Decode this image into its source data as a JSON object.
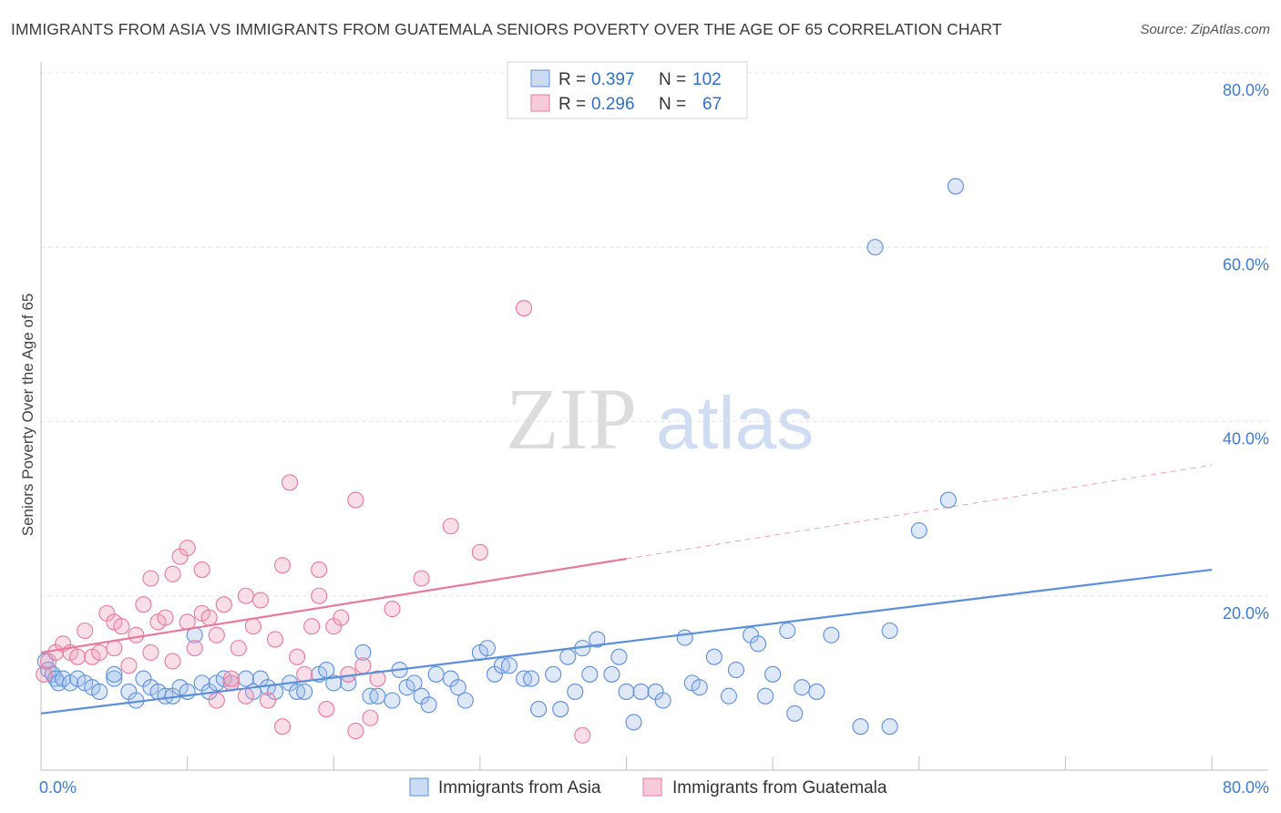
{
  "title": "IMMIGRANTS FROM ASIA VS IMMIGRANTS FROM GUATEMALA SENIORS POVERTY OVER THE AGE OF 65 CORRELATION CHART",
  "source": "Source: ZipAtlas.com",
  "watermark": {
    "zip": "ZIP",
    "atlas": "atlas"
  },
  "chart_data": {
    "type": "scatter",
    "ylabel": "Seniors Poverty Over the Age of 65",
    "xlim": [
      0,
      80
    ],
    "ylim": [
      0,
      80
    ],
    "x_tick_labels": [
      "0.0%",
      "80.0%"
    ],
    "y_ticks": [
      {
        "value": 20,
        "label": "20.0%"
      },
      {
        "value": 40,
        "label": "40.0%"
      },
      {
        "value": 60,
        "label": "60.0%"
      },
      {
        "value": 80,
        "label": "80.0%"
      }
    ],
    "legend_top": [
      {
        "r_label": "R =",
        "r": "0.397",
        "n_label": "N =",
        "n": "102",
        "color": "#5b8fdc"
      },
      {
        "r_label": "R =",
        "r": "0.296",
        "n_label": "N =",
        "n": "67",
        "color": "#e8799c"
      }
    ],
    "series": [
      {
        "name": "Immigrants from Asia",
        "color": "#5b8fdc",
        "fill": "rgba(160,190,235,0.35)",
        "trend": {
          "x0": 0,
          "y0": 6.5,
          "x1": 80,
          "y1": 23,
          "dash_from": null
        },
        "points": [
          [
            0.3,
            12.5
          ],
          [
            0.5,
            11.5
          ],
          [
            0.8,
            11
          ],
          [
            1,
            10.5
          ],
          [
            1.2,
            10
          ],
          [
            1.5,
            10.5
          ],
          [
            2,
            10
          ],
          [
            2.5,
            10.5
          ],
          [
            3,
            10
          ],
          [
            3.5,
            9.5
          ],
          [
            4,
            9
          ],
          [
            5,
            10.5
          ],
          [
            5,
            11
          ],
          [
            6,
            9
          ],
          [
            6.5,
            8
          ],
          [
            7,
            10.5
          ],
          [
            7.5,
            9.5
          ],
          [
            8,
            9
          ],
          [
            8.5,
            8.5
          ],
          [
            9,
            8.5
          ],
          [
            9.5,
            9.5
          ],
          [
            10,
            9
          ],
          [
            10.5,
            15.5
          ],
          [
            11,
            10
          ],
          [
            11.5,
            9
          ],
          [
            12,
            10
          ],
          [
            12.5,
            10.5
          ],
          [
            13,
            10
          ],
          [
            14,
            10.5
          ],
          [
            14.5,
            9
          ],
          [
            15,
            10.5
          ],
          [
            15.5,
            9.5
          ],
          [
            16,
            9
          ],
          [
            17,
            10
          ],
          [
            17.5,
            9
          ],
          [
            18,
            9
          ],
          [
            19,
            11
          ],
          [
            19.5,
            11.5
          ],
          [
            20,
            10
          ],
          [
            21,
            10
          ],
          [
            22,
            13.5
          ],
          [
            22.5,
            8.5
          ],
          [
            23,
            8.5
          ],
          [
            24,
            8
          ],
          [
            24.5,
            11.5
          ],
          [
            25,
            9.5
          ],
          [
            25.5,
            10
          ],
          [
            26,
            8.5
          ],
          [
            26.5,
            7.5
          ],
          [
            27,
            11
          ],
          [
            28,
            10.5
          ],
          [
            28.5,
            9.5
          ],
          [
            29,
            8
          ],
          [
            30,
            13.5
          ],
          [
            30.5,
            14
          ],
          [
            31,
            11
          ],
          [
            31.5,
            12
          ],
          [
            32,
            12
          ],
          [
            33,
            10.5
          ],
          [
            33.5,
            10.5
          ],
          [
            34,
            7
          ],
          [
            35,
            11
          ],
          [
            35.5,
            7
          ],
          [
            36,
            13
          ],
          [
            36.5,
            9
          ],
          [
            37,
            14
          ],
          [
            37.5,
            11
          ],
          [
            38,
            15
          ],
          [
            39,
            11
          ],
          [
            39.5,
            13
          ],
          [
            40,
            9
          ],
          [
            40.5,
            5.5
          ],
          [
            41,
            9
          ],
          [
            42,
            9
          ],
          [
            42.5,
            8
          ],
          [
            44,
            15.2
          ],
          [
            44.5,
            10
          ],
          [
            45,
            9.5
          ],
          [
            46,
            13
          ],
          [
            47,
            8.5
          ],
          [
            47.5,
            11.5
          ],
          [
            48.5,
            15.5
          ],
          [
            49,
            14.5
          ],
          [
            49.5,
            8.5
          ],
          [
            50,
            11
          ],
          [
            51,
            16
          ],
          [
            51.5,
            6.5
          ],
          [
            52,
            9.5
          ],
          [
            53,
            9
          ],
          [
            54,
            15.5
          ],
          [
            56,
            5
          ],
          [
            58,
            5
          ],
          [
            58,
            16
          ],
          [
            60,
            27.5
          ],
          [
            62,
            31
          ],
          [
            57,
            60
          ],
          [
            62.5,
            67
          ]
        ]
      },
      {
        "name": "Immigrants from Guatemala",
        "color": "#e8799c",
        "fill": "rgba(240,160,185,0.35)",
        "trend": {
          "x0": 0,
          "y0": 13.5,
          "x1": 80,
          "y1": 35,
          "dash_from": 40
        },
        "points": [
          [
            0.2,
            11
          ],
          [
            0.5,
            12.5
          ],
          [
            1,
            13.5
          ],
          [
            1.5,
            14.5
          ],
          [
            2,
            13.5
          ],
          [
            2.5,
            13
          ],
          [
            3,
            16
          ],
          [
            3.5,
            13
          ],
          [
            4,
            13.5
          ],
          [
            4.5,
            18
          ],
          [
            5,
            14
          ],
          [
            5,
            17
          ],
          [
            5.5,
            16.5
          ],
          [
            6,
            12
          ],
          [
            6.5,
            15.5
          ],
          [
            7,
            19
          ],
          [
            7.5,
            22
          ],
          [
            7.5,
            13.5
          ],
          [
            8,
            17
          ],
          [
            8.5,
            17.5
          ],
          [
            9,
            22.5
          ],
          [
            9,
            12.5
          ],
          [
            9.5,
            24.5
          ],
          [
            10,
            17
          ],
          [
            10,
            25.5
          ],
          [
            10.5,
            14
          ],
          [
            11,
            18
          ],
          [
            11,
            23
          ],
          [
            11.5,
            17.5
          ],
          [
            12,
            8
          ],
          [
            12,
            15.5
          ],
          [
            12.5,
            19
          ],
          [
            13,
            10
          ],
          [
            13,
            10.5
          ],
          [
            13.5,
            14
          ],
          [
            14,
            20
          ],
          [
            14,
            8.5
          ],
          [
            14.5,
            16.5
          ],
          [
            15,
            19.5
          ],
          [
            15.5,
            8
          ],
          [
            16,
            15
          ],
          [
            16.5,
            23.5
          ],
          [
            16.5,
            5
          ],
          [
            17,
            33
          ],
          [
            17.5,
            13
          ],
          [
            18,
            11
          ],
          [
            18.5,
            16.5
          ],
          [
            19,
            23
          ],
          [
            19,
            20
          ],
          [
            19.5,
            7
          ],
          [
            20,
            16.5
          ],
          [
            20.5,
            17.5
          ],
          [
            21,
            11
          ],
          [
            21.5,
            31
          ],
          [
            21.5,
            4.5
          ],
          [
            22,
            12
          ],
          [
            22.5,
            6
          ],
          [
            23,
            10.5
          ],
          [
            24,
            18.5
          ],
          [
            26,
            22
          ],
          [
            28,
            28
          ],
          [
            30,
            25
          ],
          [
            33,
            53
          ],
          [
            37,
            4
          ]
        ]
      }
    ]
  }
}
